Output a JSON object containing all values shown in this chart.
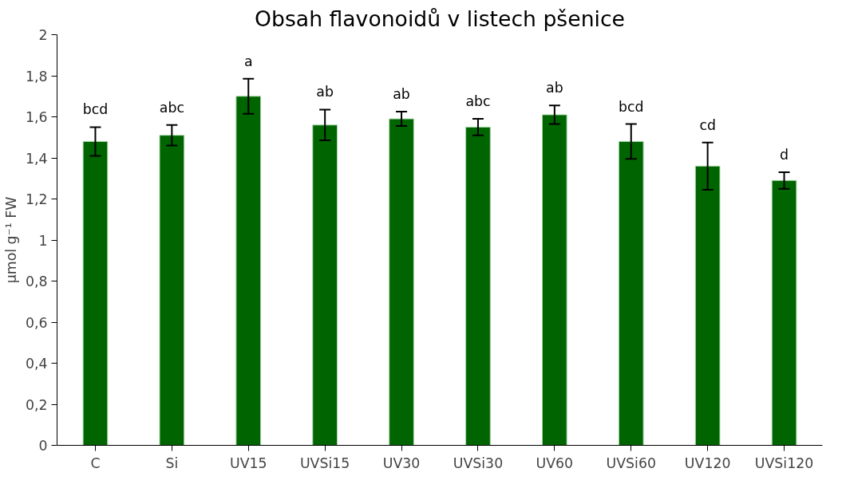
{
  "chart_data": {
    "type": "bar",
    "title": "Obsah flavonoidů v listech pšenice",
    "ylabel": "µmol g⁻¹ FW",
    "categories": [
      "C",
      "Si",
      "UV15",
      "UVSi15",
      "UV30",
      "UVSi30",
      "UV60",
      "UVSi60",
      "UV120",
      "UVSi120"
    ],
    "series": [
      {
        "color": "#006400",
        "values": [
          1.48,
          1.51,
          1.7,
          1.56,
          1.59,
          1.55,
          1.61,
          1.48,
          1.36,
          1.29
        ],
        "errors": [
          0.07,
          0.05,
          0.085,
          0.075,
          0.035,
          0.04,
          0.045,
          0.085,
          0.115,
          0.04
        ]
      }
    ],
    "ylim": [
      0,
      2
    ],
    "yticks": [
      0,
      {
        "value": 0.2,
        "label": "0,2"
      },
      {
        "value": 0.4,
        "label": "0,4"
      },
      {
        "value": 0.6,
        "label": "0,6"
      },
      {
        "value": 0.8,
        "label": "0,8"
      },
      1,
      {
        "value": 1.2,
        "label": "1,2"
      },
      {
        "value": 1.4,
        "label": "1,4"
      },
      {
        "value": 1.6,
        "label": "1,6"
      },
      {
        "value": 1.8,
        "label": "1,8"
      },
      2
    ],
    "annotations": [
      "bcd",
      "abc",
      "a",
      "ab",
      "ab",
      "abc",
      "ab",
      "bcd",
      "cd",
      "d"
    ],
    "grid": false
  }
}
